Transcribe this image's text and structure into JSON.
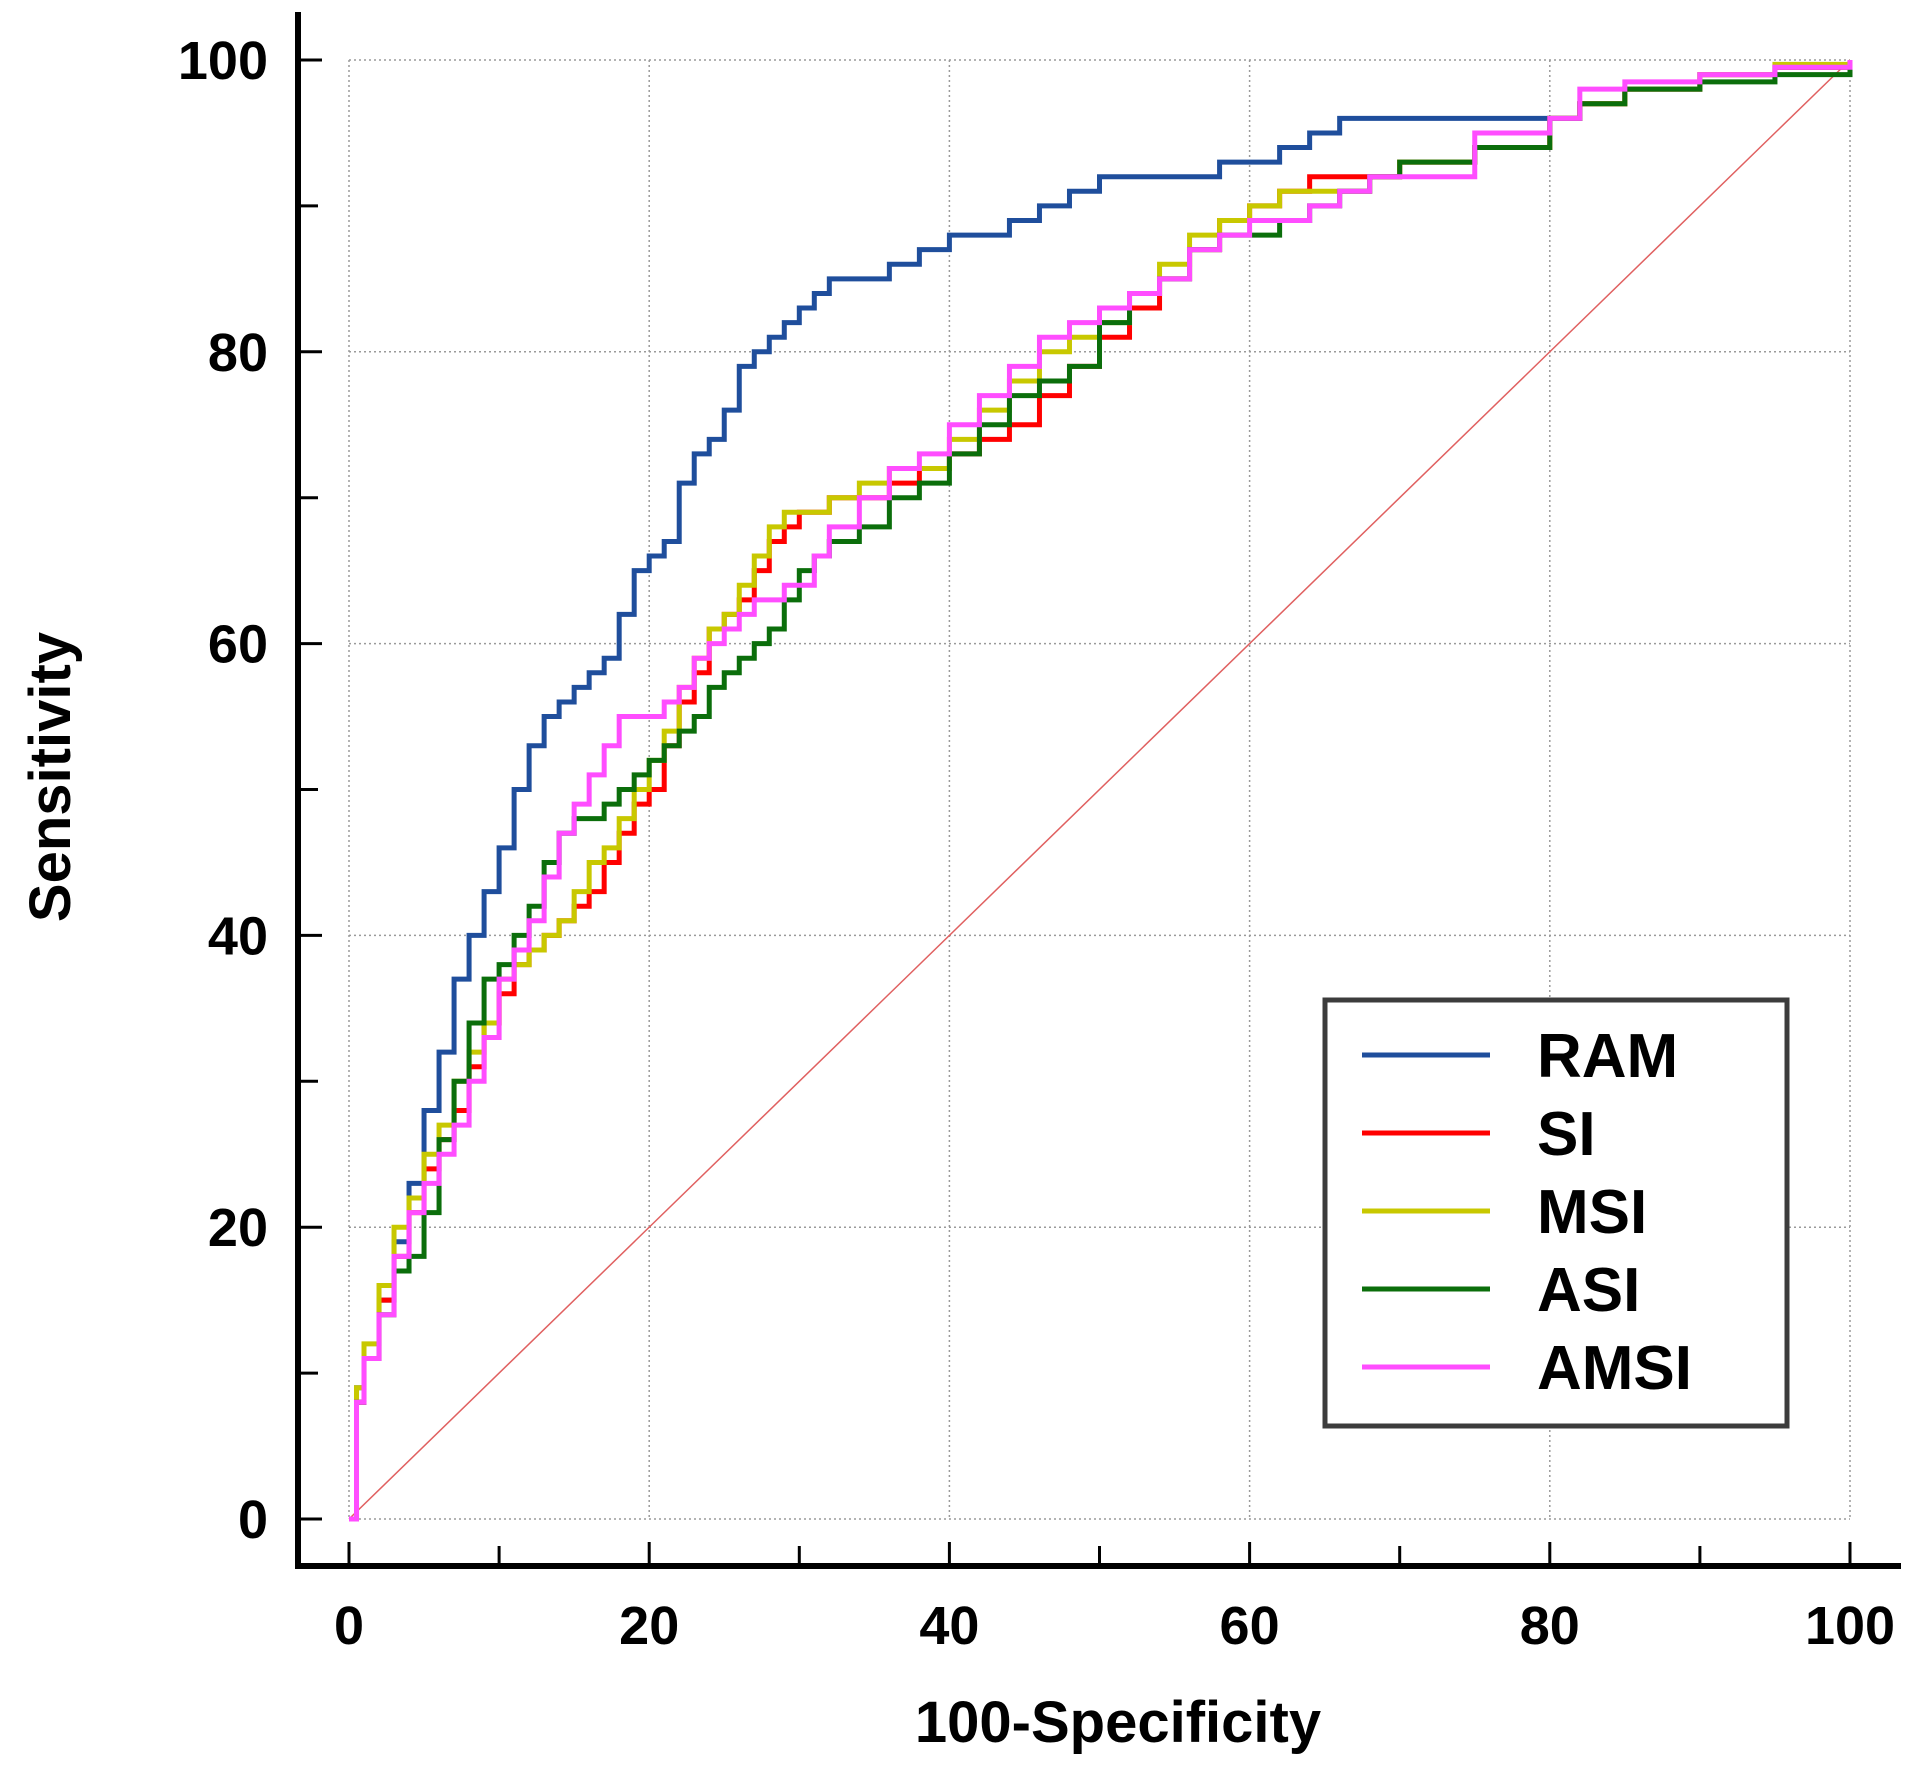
{
  "chart_data": {
    "type": "line",
    "title": "",
    "xlabel": "100-Specificity",
    "ylabel": "Sensitivity",
    "xlim": [
      0,
      100
    ],
    "ylim": [
      0,
      100
    ],
    "xticks": [
      0,
      20,
      40,
      60,
      80,
      100
    ],
    "yticks": [
      0,
      20,
      40,
      60,
      80,
      100
    ],
    "x_tick_labels": [
      "0",
      "20",
      "40",
      "60",
      "80",
      "100"
    ],
    "y_tick_labels": [
      "0",
      "20",
      "40",
      "60",
      "80",
      "100"
    ],
    "minor_tick_step": 10,
    "grid": true,
    "legend_position": "bottom-right",
    "reference_line": {
      "name": "diagonal",
      "color": "#e06060",
      "x": [
        0,
        100
      ],
      "y": [
        0,
        100
      ]
    },
    "series": [
      {
        "name": "RAM",
        "color": "#1f4e9c",
        "x": [
          0,
          0.5,
          1,
          2,
          3,
          4,
          5,
          6,
          7,
          8,
          9,
          10,
          11,
          12,
          13,
          14,
          15,
          16,
          17,
          18,
          19,
          20,
          21,
          22,
          23,
          24,
          25,
          26,
          27,
          28,
          29,
          30,
          31,
          32,
          34,
          36,
          38,
          40,
          42,
          44,
          46,
          48,
          50,
          52,
          54,
          56,
          58,
          60,
          62,
          64,
          66,
          68,
          70,
          75,
          80,
          82,
          85,
          90,
          95,
          100
        ],
        "y": [
          0,
          9,
          11,
          15,
          19,
          23,
          28,
          32,
          37,
          40,
          43,
          46,
          50,
          53,
          55,
          56,
          57,
          58,
          59,
          62,
          65,
          66,
          67,
          71,
          73,
          74,
          76,
          79,
          80,
          81,
          82,
          83,
          84,
          85,
          85,
          86,
          87,
          88,
          88,
          89,
          90,
          91,
          92,
          92,
          92,
          92,
          93,
          93,
          94,
          95,
          96,
          96,
          96,
          96,
          96,
          97,
          98,
          99,
          99.5,
          100
        ]
      },
      {
        "name": "SI",
        "color": "#ff0000",
        "x": [
          0,
          0.5,
          1,
          2,
          3,
          4,
          5,
          6,
          7,
          8,
          9,
          10,
          11,
          12,
          13,
          14,
          15,
          16,
          17,
          18,
          19,
          20,
          21,
          22,
          23,
          24,
          25,
          26,
          27,
          28,
          29,
          30,
          31,
          32,
          34,
          36,
          38,
          40,
          42,
          44,
          46,
          48,
          50,
          52,
          54,
          56,
          58,
          60,
          62,
          64,
          66,
          68,
          70,
          75,
          80,
          82,
          85,
          90,
          95,
          100
        ],
        "y": [
          0,
          8,
          11,
          15,
          18,
          21,
          24,
          26,
          28,
          31,
          34,
          36,
          38,
          39,
          40,
          41,
          42,
          43,
          45,
          47,
          49,
          50,
          53,
          56,
          58,
          61,
          62,
          63,
          65,
          67,
          68,
          69,
          69,
          70,
          70,
          71,
          72,
          73,
          74,
          75,
          77,
          79,
          81,
          83,
          85,
          87,
          89,
          90,
          91,
          92,
          92,
          92,
          93,
          94,
          96,
          97,
          98,
          99,
          99.5,
          100
        ]
      },
      {
        "name": "MSI",
        "color": "#c8c800",
        "x": [
          0,
          0.5,
          1,
          2,
          3,
          4,
          5,
          6,
          7,
          8,
          9,
          10,
          11,
          12,
          13,
          14,
          15,
          16,
          17,
          18,
          19,
          20,
          21,
          22,
          23,
          24,
          25,
          26,
          27,
          28,
          29,
          30,
          31,
          32,
          34,
          36,
          38,
          40,
          42,
          44,
          46,
          48,
          50,
          52,
          54,
          56,
          58,
          60,
          62,
          64,
          66,
          68,
          70,
          75,
          80,
          82,
          85,
          90,
          95,
          100
        ],
        "y": [
          0,
          9,
          12,
          16,
          20,
          22,
          25,
          27,
          30,
          32,
          34,
          37,
          38,
          39,
          40,
          41,
          43,
          45,
          46,
          48,
          50,
          52,
          54,
          57,
          59,
          61,
          62,
          64,
          66,
          68,
          69,
          69,
          69,
          70,
          71,
          72,
          72,
          74,
          76,
          78,
          80,
          81,
          82,
          84,
          86,
          88,
          89,
          90,
          91,
          91,
          91,
          92,
          93,
          94,
          96,
          97,
          98,
          99,
          99.7,
          100
        ]
      },
      {
        "name": "ASI",
        "color": "#0b6e0b",
        "x": [
          0,
          0.5,
          1,
          2,
          3,
          4,
          5,
          6,
          7,
          8,
          9,
          10,
          11,
          12,
          13,
          14,
          15,
          16,
          17,
          18,
          19,
          20,
          21,
          22,
          23,
          24,
          25,
          26,
          27,
          28,
          29,
          30,
          31,
          32,
          34,
          36,
          38,
          40,
          42,
          44,
          46,
          48,
          50,
          52,
          54,
          56,
          58,
          60,
          62,
          64,
          66,
          68,
          70,
          75,
          80,
          82,
          85,
          90,
          95,
          100
        ],
        "y": [
          0,
          8,
          11,
          14,
          17,
          18,
          21,
          26,
          30,
          34,
          37,
          38,
          40,
          42,
          45,
          47,
          48,
          48,
          49,
          50,
          51,
          52,
          53,
          54,
          55,
          57,
          58,
          59,
          60,
          61,
          63,
          65,
          66,
          67,
          68,
          70,
          71,
          73,
          75,
          77,
          78,
          79,
          82,
          84,
          85,
          87,
          88,
          88,
          89,
          90,
          91,
          92,
          93,
          94,
          96,
          97,
          98,
          98.5,
          99,
          99.5
        ]
      },
      {
        "name": "AMSI",
        "color": "#ff4dff",
        "x": [
          0,
          0.5,
          1,
          2,
          3,
          4,
          5,
          6,
          7,
          8,
          9,
          10,
          11,
          12,
          13,
          14,
          15,
          16,
          17,
          18,
          19,
          20,
          21,
          22,
          23,
          24,
          25,
          26,
          27,
          28,
          29,
          30,
          31,
          32,
          34,
          36,
          38,
          40,
          42,
          44,
          46,
          48,
          50,
          52,
          54,
          56,
          58,
          60,
          62,
          64,
          66,
          68,
          70,
          75,
          80,
          82,
          85,
          90,
          95,
          100
        ],
        "y": [
          0,
          8,
          11,
          14,
          18,
          21,
          23,
          25,
          27,
          30,
          33,
          37,
          39,
          41,
          44,
          47,
          49,
          51,
          53,
          55,
          55,
          55,
          56,
          57,
          59,
          60,
          61,
          62,
          63,
          63,
          64,
          64,
          66,
          68,
          70,
          72,
          73,
          75,
          77,
          79,
          81,
          82,
          83,
          84,
          85,
          87,
          88,
          89,
          89,
          90,
          91,
          92,
          92,
          95,
          96,
          98,
          98.5,
          99,
          99.5,
          100
        ]
      }
    ]
  }
}
